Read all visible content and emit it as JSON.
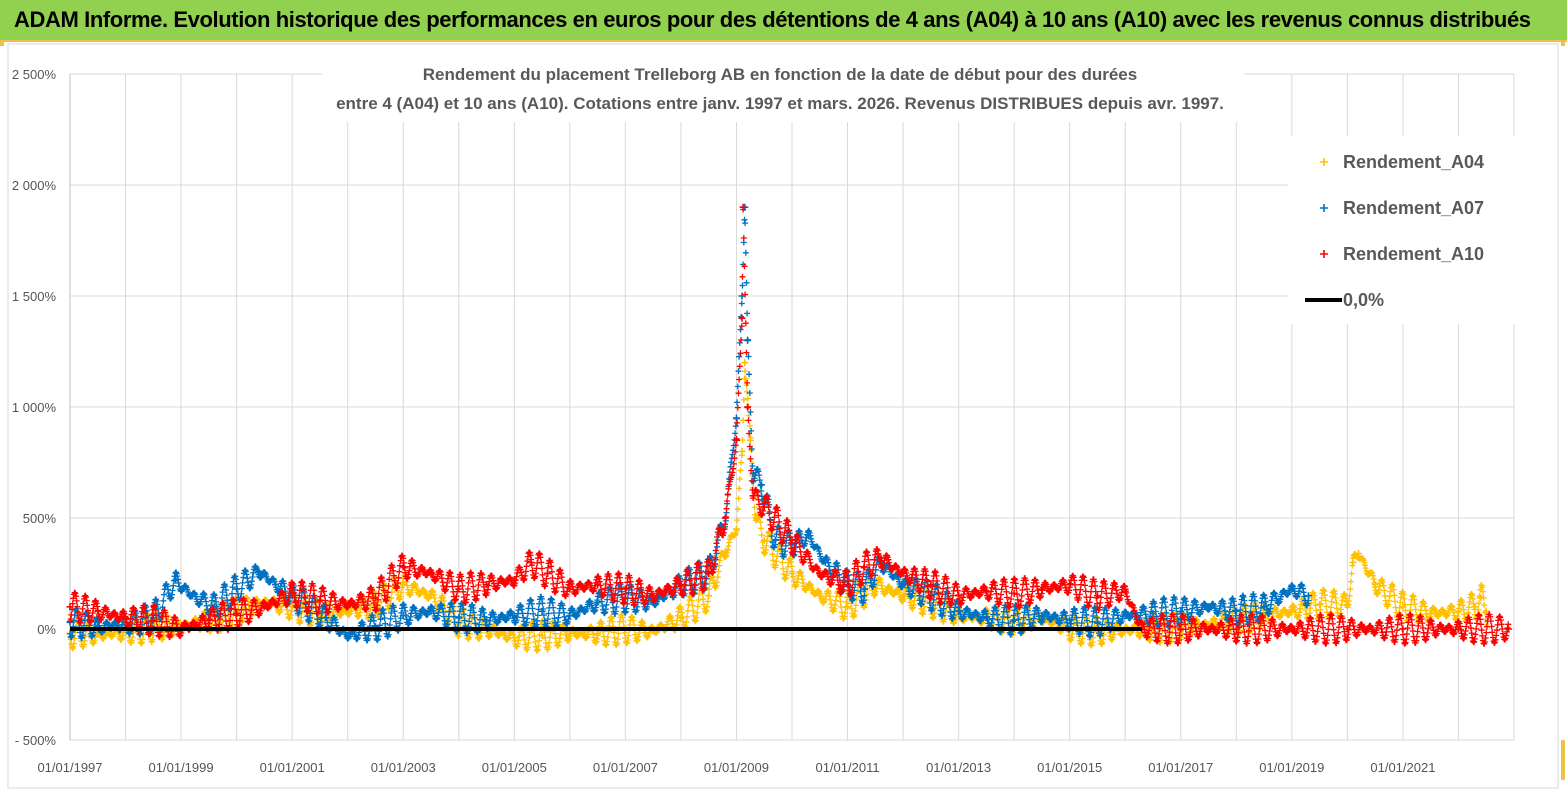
{
  "banner": {
    "title": "ADAM Informe. Evolution historique des performances en euros pour des détentions de 4 ans (A04) à 10 ans (A10) avec les revenus connus distribués"
  },
  "colors": {
    "banner": "#92d050",
    "A04": "#ffc000",
    "A07": "#0070c0",
    "A10": "#ff0000",
    "zero": "#000000",
    "grid": "#d9d9d9"
  },
  "chart_data": {
    "type": "scatter",
    "title": [
      "Rendement du placement Trelleborg AB en fonction de la date de début pour des durées",
      "entre 4 (A04) et 10 ans (A10). Cotations entre janv. 1997 et mars. 2026. Revenus DISTRIBUES depuis avr. 1997."
    ],
    "xlabel": "",
    "ylabel": "",
    "x_ticks": [
      "01/01/1997",
      "01/01/1999",
      "01/01/2001",
      "01/01/2003",
      "01/01/2005",
      "01/01/2007",
      "01/01/2009",
      "01/01/2011",
      "01/01/2013",
      "01/01/2015",
      "01/01/2017",
      "01/01/2019",
      "01/01/2021"
    ],
    "y_ticks": [
      "- 500%",
      "0%",
      "500%",
      "1 000%",
      "1 500%",
      "2 000%",
      "2 500%"
    ],
    "ylim": [
      -500,
      2500
    ],
    "xlim": [
      1997.0,
      2023.0
    ],
    "grid": "vertical and horizontal gridlines",
    "legend_position": "top-right",
    "legend": [
      "Rendement_A04",
      "Rendement_A07",
      "Rendement_A10",
      "0,0%"
    ],
    "series": [
      {
        "name": "Rendement_A04",
        "marker": "+",
        "points": [
          [
            1997.0,
            -20
          ],
          [
            1997.5,
            -25
          ],
          [
            1998.0,
            -15
          ],
          [
            1998.5,
            10
          ],
          [
            1999.0,
            10
          ],
          [
            1999.5,
            40
          ],
          [
            2000.0,
            80
          ],
          [
            2000.5,
            120
          ],
          [
            2001.0,
            100
          ],
          [
            2001.5,
            70
          ],
          [
            2002.0,
            80
          ],
          [
            2002.5,
            110
          ],
          [
            2003.0,
            200
          ],
          [
            2003.5,
            150
          ],
          [
            2004.0,
            30
          ],
          [
            2004.5,
            0
          ],
          [
            2005.0,
            -40
          ],
          [
            2005.5,
            -30
          ],
          [
            2006.0,
            -20
          ],
          [
            2006.5,
            -20
          ],
          [
            2007.0,
            0
          ],
          [
            2007.5,
            -10
          ],
          [
            2008.0,
            50
          ],
          [
            2008.5,
            150
          ],
          [
            2008.8,
            350
          ],
          [
            2009.0,
            450
          ],
          [
            2009.1,
            800
          ],
          [
            2009.15,
            1200
          ],
          [
            2009.25,
            850
          ],
          [
            2009.35,
            500
          ],
          [
            2009.5,
            400
          ],
          [
            2010.0,
            250
          ],
          [
            2010.5,
            150
          ],
          [
            2011.0,
            100
          ],
          [
            2011.5,
            200
          ],
          [
            2012.0,
            150
          ],
          [
            2012.5,
            120
          ],
          [
            2013.0,
            60
          ],
          [
            2013.5,
            50
          ],
          [
            2014.0,
            40
          ],
          [
            2014.5,
            50
          ],
          [
            2015.0,
            0
          ],
          [
            2015.5,
            -10
          ],
          [
            2016.0,
            -5
          ],
          [
            2016.5,
            0
          ],
          [
            2017.0,
            10
          ],
          [
            2017.5,
            20
          ],
          [
            2018.0,
            40
          ],
          [
            2018.5,
            60
          ],
          [
            2019.0,
            80
          ],
          [
            2019.5,
            110
          ],
          [
            2020.0,
            110
          ],
          [
            2020.1,
            300
          ],
          [
            2020.2,
            340
          ],
          [
            2020.5,
            200
          ],
          [
            2021.0,
            100
          ],
          [
            2021.5,
            70
          ],
          [
            2022.0,
            80
          ],
          [
            2022.3,
            100
          ],
          [
            2022.4,
            140
          ],
          [
            2022.5,
            80
          ]
        ]
      },
      {
        "name": "Rendement_A07",
        "marker": "+",
        "points": [
          [
            1997.0,
            30
          ],
          [
            1997.5,
            10
          ],
          [
            1998.0,
            20
          ],
          [
            1998.5,
            50
          ],
          [
            1998.9,
            220
          ],
          [
            1999.2,
            150
          ],
          [
            1999.6,
            100
          ],
          [
            2000.0,
            180
          ],
          [
            2000.4,
            260
          ],
          [
            2000.7,
            200
          ],
          [
            2001.0,
            150
          ],
          [
            2001.3,
            100
          ],
          [
            2001.6,
            50
          ],
          [
            2002.0,
            -30
          ],
          [
            2002.5,
            10
          ],
          [
            2003.0,
            60
          ],
          [
            2003.5,
            80
          ],
          [
            2004.0,
            50
          ],
          [
            2004.5,
            40
          ],
          [
            2005.0,
            60
          ],
          [
            2005.5,
            80
          ],
          [
            2006.0,
            60
          ],
          [
            2006.5,
            120
          ],
          [
            2007.0,
            140
          ],
          [
            2007.5,
            120
          ],
          [
            2008.0,
            200
          ],
          [
            2008.5,
            250
          ],
          [
            2008.8,
            500
          ],
          [
            2009.0,
            950
          ],
          [
            2009.1,
            1500
          ],
          [
            2009.15,
            1900
          ],
          [
            2009.2,
            1300
          ],
          [
            2009.3,
            700
          ],
          [
            2009.45,
            650
          ],
          [
            2009.7,
            400
          ],
          [
            2010.0,
            380
          ],
          [
            2010.3,
            420
          ],
          [
            2010.6,
            300
          ],
          [
            2011.0,
            200
          ],
          [
            2011.3,
            180
          ],
          [
            2011.6,
            300
          ],
          [
            2012.0,
            200
          ],
          [
            2012.5,
            150
          ],
          [
            2013.0,
            80
          ],
          [
            2013.5,
            50
          ],
          [
            2014.0,
            40
          ],
          [
            2014.5,
            60
          ],
          [
            2015.0,
            40
          ],
          [
            2015.5,
            30
          ],
          [
            2016.0,
            60
          ],
          [
            2016.5,
            70
          ],
          [
            2017.0,
            80
          ],
          [
            2017.5,
            100
          ],
          [
            2018.0,
            80
          ],
          [
            2018.5,
            100
          ],
          [
            2019.0,
            180
          ],
          [
            2019.3,
            150
          ]
        ]
      },
      {
        "name": "Rendement_A10",
        "marker": "+",
        "points": [
          [
            1997.0,
            100
          ],
          [
            1997.5,
            80
          ],
          [
            1998.0,
            50
          ],
          [
            1998.5,
            40
          ],
          [
            1999.0,
            0
          ],
          [
            1999.5,
            40
          ],
          [
            2000.0,
            70
          ],
          [
            2000.5,
            100
          ],
          [
            2001.0,
            160
          ],
          [
            2001.5,
            130
          ],
          [
            2002.0,
            110
          ],
          [
            2002.5,
            140
          ],
          [
            2003.0,
            280
          ],
          [
            2003.5,
            250
          ],
          [
            2004.0,
            180
          ],
          [
            2004.5,
            200
          ],
          [
            2005.0,
            220
          ],
          [
            2005.3,
            300
          ],
          [
            2005.6,
            250
          ],
          [
            2006.0,
            180
          ],
          [
            2006.5,
            200
          ],
          [
            2007.0,
            180
          ],
          [
            2007.5,
            150
          ],
          [
            2008.0,
            200
          ],
          [
            2008.5,
            250
          ],
          [
            2008.8,
            500
          ],
          [
            2009.0,
            850
          ],
          [
            2009.1,
            1400
          ],
          [
            2009.12,
            1900
          ],
          [
            2009.2,
            1000
          ],
          [
            2009.3,
            600
          ],
          [
            2009.5,
            550
          ],
          [
            2010.0,
            400
          ],
          [
            2010.5,
            250
          ],
          [
            2011.0,
            200
          ],
          [
            2011.3,
            280
          ],
          [
            2011.6,
            320
          ],
          [
            2012.0,
            250
          ],
          [
            2012.5,
            200
          ],
          [
            2013.0,
            150
          ],
          [
            2013.5,
            170
          ],
          [
            2014.0,
            160
          ],
          [
            2014.5,
            180
          ],
          [
            2015.0,
            200
          ],
          [
            2015.5,
            150
          ],
          [
            2016.0,
            170
          ],
          [
            2016.3,
            0
          ],
          [
            2017.0,
            0
          ],
          [
            2018.0,
            0
          ],
          [
            2019.0,
            0
          ],
          [
            2020.0,
            0
          ],
          [
            2021.0,
            0
          ],
          [
            2022.0,
            0
          ],
          [
            2022.9,
            0
          ]
        ]
      },
      {
        "name": "0,0%",
        "type": "line",
        "points": [
          [
            1997.0,
            0
          ],
          [
            2016.3,
            0
          ]
        ]
      }
    ]
  }
}
